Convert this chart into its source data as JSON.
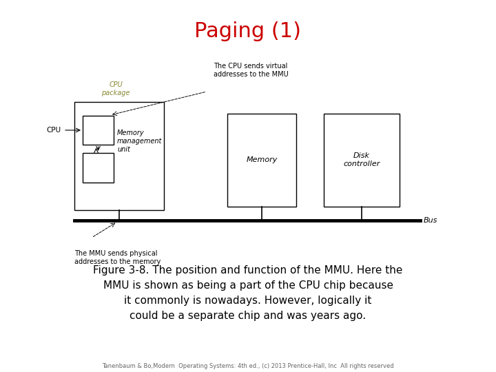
{
  "title": "Paging (1)",
  "title_color": "#cc0000",
  "title_fontsize": 22,
  "body_text_line1": "Figure 3-8. The position and function of the MMU. Here the",
  "body_text_line2": "MMU is shown as being a part of the CPU chip because",
  "body_text_line3": "it commonly is nowadays. However, logically it",
  "body_text_line4": "could be a separate chip and was years ago.",
  "footer_text": "Tanenbaum & Bo,Modern  Operating Systems: 4th ed., (c) 2013 Prentice-Hall, Inc  All rights reserved",
  "background_color": "#ffffff",
  "cpu_package_label": "CPU\npackage",
  "cpu_label": "CPU",
  "mmu_label": "Memory\nmanagement\nunit",
  "memory_label": "Memory",
  "disk_label": "Disk\ncontroller",
  "bus_label": "Bus",
  "virtual_addr_label": "The CPU sends virtual\naddresses to the MMU",
  "physical_addr_label": "The MMU sends physical\naddresses to the memory"
}
